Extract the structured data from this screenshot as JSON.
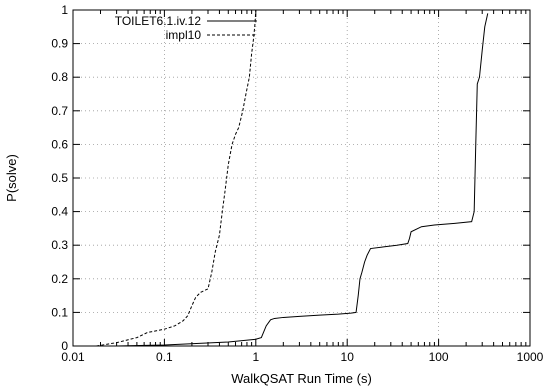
{
  "chart_data": {
    "type": "line",
    "title": "",
    "xlabel": "WalkQSAT Run Time (s)",
    "ylabel": "P(solve)",
    "xscale": "log",
    "xlim": [
      0.01,
      1000
    ],
    "ylim": [
      0,
      1
    ],
    "xticks": [
      0.01,
      0.1,
      1,
      10,
      100,
      1000
    ],
    "xtick_labels": [
      "0.01",
      "0.1",
      "1",
      "10",
      "100",
      "1000"
    ],
    "yticks": [
      0,
      0.1,
      0.2,
      0.3,
      0.4,
      0.5,
      0.6,
      0.7,
      0.8,
      0.9,
      1
    ],
    "ytick_labels": [
      "0",
      "0.1",
      "0.2",
      "0.3",
      "0.4",
      "0.5",
      "0.6",
      "0.7",
      "0.8",
      "0.9",
      "1"
    ],
    "grid": true,
    "legend_position": "top-left",
    "series": [
      {
        "name": "TOILET6.1.iv.12",
        "style": "solid",
        "color": "#000000",
        "points": [
          [
            0.03,
            0.0
          ],
          [
            0.1,
            0.003
          ],
          [
            0.5,
            0.012
          ],
          [
            1.0,
            0.02
          ],
          [
            1.15,
            0.025
          ],
          [
            1.3,
            0.06
          ],
          [
            1.45,
            0.078
          ],
          [
            1.6,
            0.082
          ],
          [
            2,
            0.085
          ],
          [
            3,
            0.088
          ],
          [
            5,
            0.092
          ],
          [
            8,
            0.095
          ],
          [
            11,
            0.098
          ],
          [
            12.5,
            0.1
          ],
          [
            13.2,
            0.15
          ],
          [
            13.8,
            0.2
          ],
          [
            14.5,
            0.22
          ],
          [
            15.5,
            0.25
          ],
          [
            16.5,
            0.27
          ],
          [
            18,
            0.29
          ],
          [
            25,
            0.295
          ],
          [
            35,
            0.3
          ],
          [
            46,
            0.305
          ],
          [
            48,
            0.32
          ],
          [
            50,
            0.34
          ],
          [
            65,
            0.355
          ],
          [
            90,
            0.36
          ],
          [
            150,
            0.365
          ],
          [
            230,
            0.37
          ],
          [
            245,
            0.4
          ],
          [
            255,
            0.6
          ],
          [
            265,
            0.78
          ],
          [
            280,
            0.8
          ],
          [
            300,
            0.88
          ],
          [
            320,
            0.95
          ],
          [
            345,
            0.99
          ]
        ]
      },
      {
        "name": "impl10",
        "style": "dashed",
        "color": "#000000",
        "points": [
          [
            0.018,
            0.0
          ],
          [
            0.03,
            0.01
          ],
          [
            0.05,
            0.025
          ],
          [
            0.065,
            0.04
          ],
          [
            0.1,
            0.05
          ],
          [
            0.13,
            0.06
          ],
          [
            0.16,
            0.075
          ],
          [
            0.18,
            0.09
          ],
          [
            0.2,
            0.12
          ],
          [
            0.22,
            0.145
          ],
          [
            0.25,
            0.16
          ],
          [
            0.3,
            0.17
          ],
          [
            0.33,
            0.22
          ],
          [
            0.36,
            0.28
          ],
          [
            0.4,
            0.33
          ],
          [
            0.43,
            0.4
          ],
          [
            0.46,
            0.46
          ],
          [
            0.5,
            0.54
          ],
          [
            0.55,
            0.6
          ],
          [
            0.6,
            0.63
          ],
          [
            0.65,
            0.65
          ],
          [
            0.72,
            0.7
          ],
          [
            0.78,
            0.75
          ],
          [
            0.85,
            0.8
          ],
          [
            0.9,
            0.87
          ],
          [
            0.95,
            0.92
          ],
          [
            0.98,
            0.96
          ],
          [
            1.0,
            1.0
          ]
        ]
      }
    ]
  }
}
